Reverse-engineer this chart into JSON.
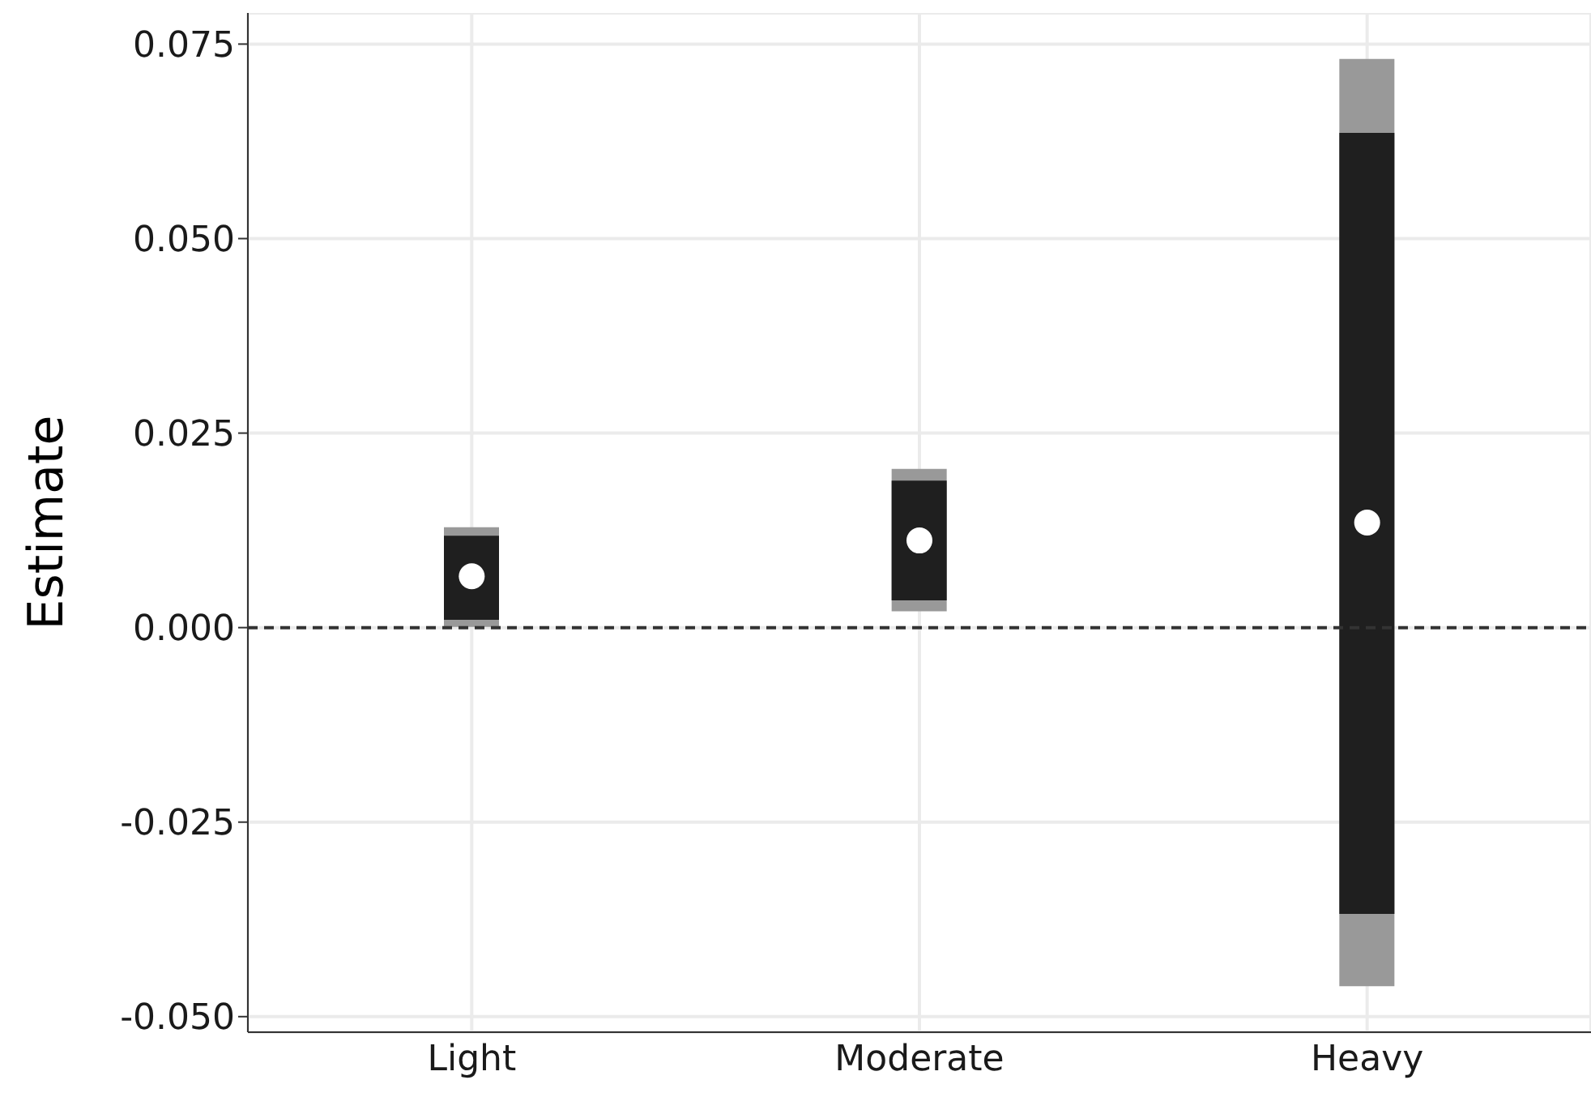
{
  "chart_data": {
    "type": "bar",
    "ylabel": "Estimate",
    "categories": [
      "Light",
      "Moderate",
      "Heavy"
    ],
    "series": [
      {
        "color": "#999999",
        "base": [
          0.0001,
          0.0021,
          -0.0461
        ],
        "values": [
          0.0128,
          0.0183,
          0.1192
        ]
      },
      {
        "color": "#1f1f1f",
        "base": [
          0.001,
          0.0035,
          -0.0368
        ],
        "values": [
          0.0108,
          0.0154,
          0.1004
        ]
      },
      {
        "type": "scatter",
        "color": "#ffffff",
        "values": [
          0.0066,
          0.0112,
          0.0135
        ]
      }
    ],
    "ylim": [
      -0.052,
      0.079
    ],
    "yticks": [
      {
        "value": -0.05,
        "label": "-0.050"
      },
      {
        "value": -0.025,
        "label": "-0.025"
      },
      {
        "value": 0,
        "label": "0.000"
      },
      0.025,
      {
        "value": 0.05,
        "label": "0.050"
      },
      0.075
    ],
    "ref_lines": [
      {
        "axis": "y",
        "value": 0,
        "line_style": "dashed",
        "color": "#333333"
      }
    ],
    "grid": true,
    "marker": "circle"
  }
}
